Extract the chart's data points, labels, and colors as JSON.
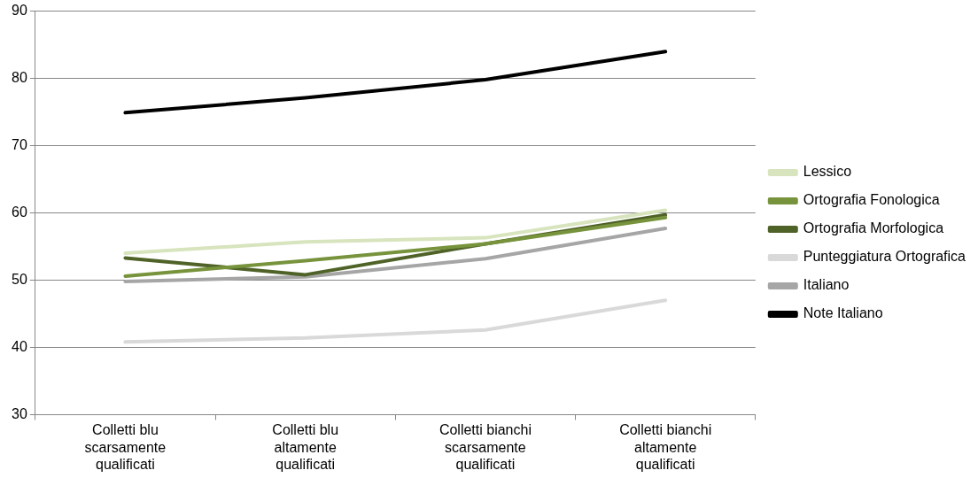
{
  "chart_data": {
    "type": "line",
    "categories": [
      "Colletti blu scarsamente qualificati",
      "Colletti blu altamente qualificati",
      "Colletti bianchi scarsamente qualificati",
      "Colletti bianchi altamente qualificati"
    ],
    "series": [
      {
        "name": "Lessico",
        "color": "#d7e4bd",
        "values": [
          54.0,
          55.7,
          56.3,
          60.4
        ]
      },
      {
        "name": "Ortografia Fonologica",
        "color": "#77933c",
        "values": [
          50.6,
          52.9,
          55.4,
          59.3
        ]
      },
      {
        "name": "Ortografia Morfologica",
        "color": "#4f6228",
        "values": [
          53.3,
          50.8,
          55.4,
          59.7
        ]
      },
      {
        "name": "Punteggiatura Ortografica",
        "color": "#d9d9d9",
        "values": [
          40.8,
          41.4,
          42.6,
          47.0
        ]
      },
      {
        "name": "Italiano",
        "color": "#a6a6a6",
        "values": [
          49.8,
          50.5,
          53.2,
          57.7
        ]
      },
      {
        "name": "Note Italiano",
        "color": "#000000",
        "values": [
          74.9,
          77.1,
          79.8,
          84.0
        ]
      }
    ],
    "ylim": [
      30,
      90
    ],
    "yticks": [
      30,
      40,
      50,
      60,
      70,
      80,
      90
    ],
    "grid": "y",
    "legend": "right",
    "marker": "none",
    "line_style": "solid"
  }
}
